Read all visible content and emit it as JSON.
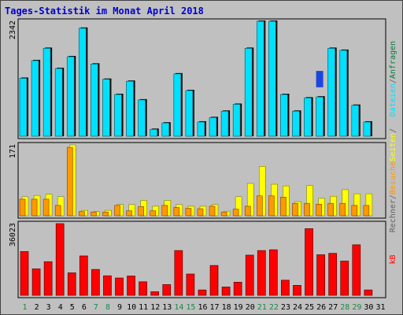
{
  "chart_data": {
    "type": "bar",
    "title": "Tages-Statistik im Monat April 2018",
    "categories": [
      "1",
      "2",
      "3",
      "4",
      "5",
      "6",
      "7",
      "8",
      "9",
      "10",
      "11",
      "12",
      "13",
      "14",
      "15",
      "16",
      "17",
      "18",
      "19",
      "20",
      "21",
      "22",
      "23",
      "24",
      "25",
      "26",
      "27",
      "28",
      "29",
      "30",
      "31"
    ],
    "weekend_days": [
      "1",
      "7",
      "8",
      "14",
      "15",
      "21",
      "22",
      "28",
      "29"
    ],
    "panels": [
      {
        "ymax_label": "2342",
        "ymax": 2342,
        "right_label_parts": [
          "Dateien",
          "/",
          "Anfragen"
        ],
        "series": [
          {
            "name": "Anfragen",
            "color": "#0a7a3a",
            "values": [
              1180,
              1540,
              1790,
              1380,
              1620,
              2200,
              1470,
              1160,
              850,
              1120,
              740,
              140,
              270,
              1290,
              930,
              290,
              380,
              510,
              650,
              1790,
              2342,
              2342,
              850,
              510,
              780,
              800,
              1790,
              1750,
              630,
              290,
              0
            ]
          },
          {
            "name": "Dateien",
            "color": "#00e0ff",
            "values": [
              1180,
              1540,
              1790,
              1380,
              1620,
              2200,
              1470,
              1160,
              850,
              1120,
              740,
              140,
              270,
              1270,
              930,
              290,
              380,
              510,
              650,
              1790,
              2342,
              2342,
              850,
              510,
              780,
              800,
              1790,
              1750,
              630,
              290,
              0
            ]
          },
          {
            "name": "Dateien (Hervorhebung)",
            "color": "#1e44e0",
            "values": [
              0,
              0,
              0,
              0,
              0,
              0,
              0,
              0,
              0,
              0,
              0,
              0,
              0,
              0,
              0,
              0,
              0,
              0,
              0,
              0,
              0,
              0,
              0,
              0,
              0,
              1330,
              0,
              0,
              0,
              0,
              0
            ]
          }
        ]
      },
      {
        "ymax_label": "171",
        "ymax": 171,
        "right_label_parts": [
          "Rechner",
          "/",
          "Besuche",
          "Seiten",
          "/"
        ],
        "series": [
          {
            "name": "Seiten",
            "color": "#ffff00",
            "values": [
              46,
              49,
              52,
              46,
              171,
              13,
              10,
              13,
              27,
              27,
              37,
              23,
              37,
              27,
              23,
              23,
              27,
              11,
              46,
              78,
              119,
              76,
              72,
              34,
              73,
              42,
              47,
              63,
              53,
              53,
              0
            ]
          },
          {
            "name": "Besuche",
            "color": "#ff9900",
            "values": [
              40,
              40,
              40,
              25,
              165,
              10,
              9,
              9,
              25,
              12,
              22,
              12,
              25,
              20,
              18,
              17,
              23,
              9,
              16,
              23,
              48,
              48,
              45,
              30,
              30,
              28,
              30,
              30,
              25,
              25,
              0
            ]
          }
        ]
      },
      {
        "ymax_label": "36023",
        "ymax": 36023,
        "right_label_parts": [
          "kB"
        ],
        "series": [
          {
            "name": "kB",
            "color": "#ff0000",
            "values": [
              22000,
              13300,
              16900,
              36023,
              11300,
              19800,
              13000,
              9800,
              8700,
              9700,
              6800,
              1800,
              5400,
              22500,
              10700,
              2700,
              15000,
              4200,
              6600,
              20200,
              22500,
              22900,
              7600,
              5000,
              33500,
              20400,
              21100,
              17200,
              25400,
              2700,
              0
            ]
          }
        ]
      }
    ]
  }
}
